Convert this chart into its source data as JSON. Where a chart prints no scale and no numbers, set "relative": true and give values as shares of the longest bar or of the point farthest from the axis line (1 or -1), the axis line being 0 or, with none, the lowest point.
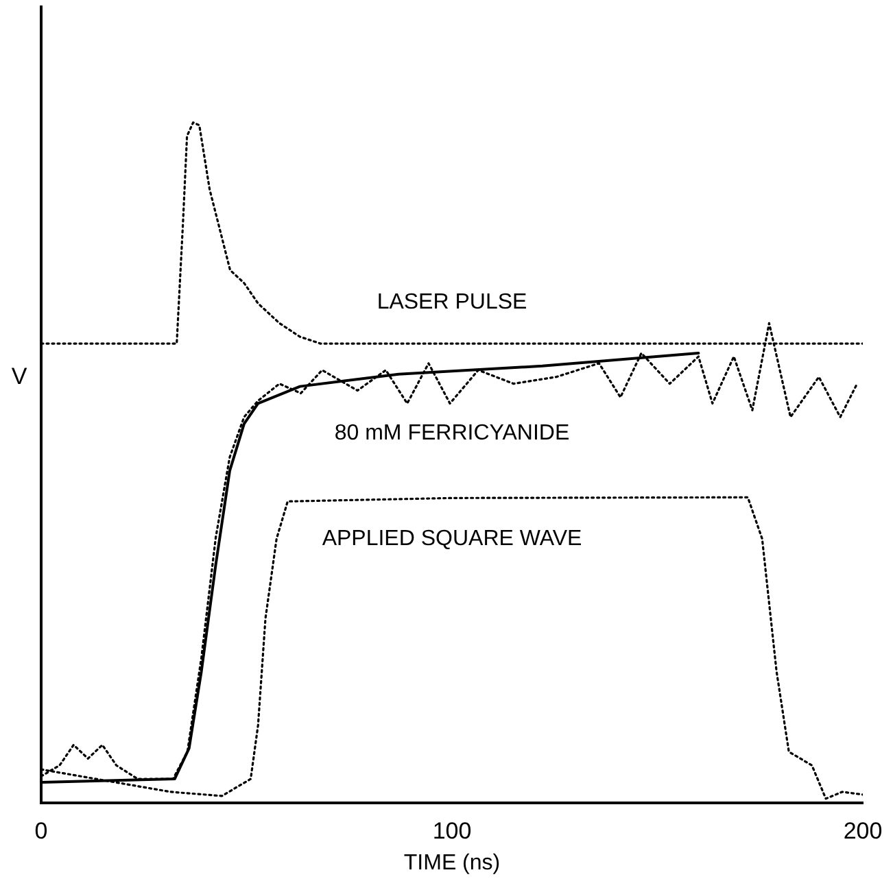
{
  "chart_data": {
    "type": "line",
    "relative": true,
    "xlabel": "TIME (ns)",
    "ylabel": "V",
    "xlim": [
      0,
      200
    ],
    "xticks": [
      0,
      100,
      200
    ],
    "grid": false,
    "tick_labels": "x",
    "series": [
      {
        "name": "LASER PULSE",
        "color": "#000000",
        "line_style": "dotted",
        "x": [
          0,
          33,
          34.5,
          35.5,
          37,
          38.5,
          41,
          46,
          49.4,
          52.8,
          58,
          63,
          68,
          200
        ],
        "values": [
          0.675,
          0.675,
          0.85,
          0.98,
          1.0,
          0.996,
          0.902,
          0.783,
          0.764,
          0.734,
          0.705,
          0.685,
          0.675,
          0.675
        ]
      },
      {
        "name": "80 mM FERRICYANIDE",
        "color": "#000000",
        "line_style": "dotted",
        "x": [
          0,
          4.5,
          7.9,
          11.4,
          14.9,
          18.3,
          23.5,
          32.1,
          35.6,
          39,
          42.5,
          45.9,
          49.4,
          52.8,
          58,
          63.2,
          68.4,
          77,
          83.9,
          89.1,
          94.3,
          99.5,
          106.4,
          115,
          125.4,
          135.8,
          141,
          146.1,
          153,
          160,
          163.4,
          168.6,
          173.1,
          177.2,
          182.4,
          189.3,
          194.5,
          198.6
        ],
        "values": [
          0.039,
          0.055,
          0.085,
          0.065,
          0.085,
          0.055,
          0.035,
          0.035,
          0.075,
          0.213,
          0.39,
          0.508,
          0.567,
          0.591,
          0.616,
          0.602,
          0.636,
          0.606,
          0.636,
          0.587,
          0.646,
          0.587,
          0.636,
          0.616,
          0.626,
          0.646,
          0.596,
          0.661,
          0.616,
          0.656,
          0.587,
          0.656,
          0.577,
          0.705,
          0.567,
          0.626,
          0.567,
          0.616
        ]
      },
      {
        "color": "#000000",
        "line_style": "solid",
        "x": [
          0,
          32.5,
          36,
          39,
          42.5,
          45.9,
          49.4,
          52.8,
          63,
          87,
          122,
          160
        ],
        "values": [
          0.03,
          0.035,
          0.08,
          0.193,
          0.35,
          0.488,
          0.557,
          0.587,
          0.612,
          0.63,
          0.642,
          0.661
        ]
      },
      {
        "name": "APPLIED SQUARE WAVE",
        "color": "#000000",
        "line_style": "dotted",
        "x": [
          0,
          31.5,
          44,
          51,
          52.8,
          54.6,
          57.3,
          60,
          100,
          172,
          175.5,
          179,
          182,
          187.6,
          191,
          195,
          200
        ],
        "values": [
          0.049,
          0.016,
          0.01,
          0.035,
          0.114,
          0.271,
          0.388,
          0.443,
          0.448,
          0.449,
          0.388,
          0.193,
          0.075,
          0.055,
          0.006,
          0.016,
          0.012
        ]
      }
    ]
  }
}
